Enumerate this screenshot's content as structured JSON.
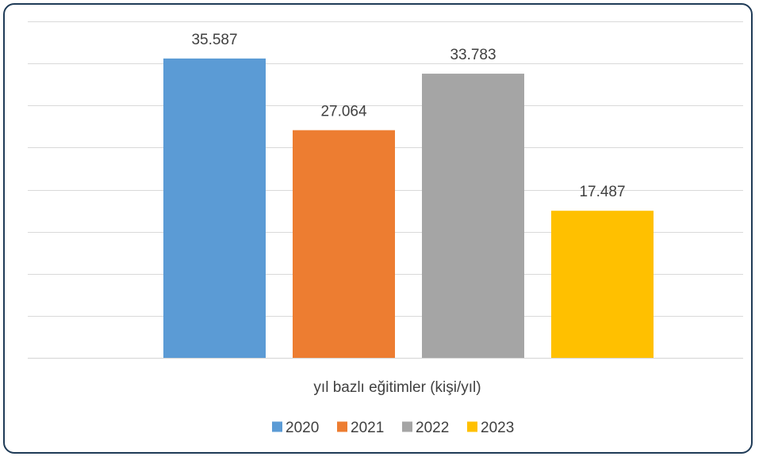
{
  "chart_data": {
    "type": "bar",
    "categories": [
      "yıl bazlı eğitimler (kişi/yıl)"
    ],
    "series": [
      {
        "name": "2020",
        "values": [
          35587
        ],
        "label": "35.587",
        "color": "#5b9bd5"
      },
      {
        "name": "2021",
        "values": [
          27064
        ],
        "label": "27.064",
        "color": "#ed7d31"
      },
      {
        "name": "2022",
        "values": [
          33783
        ],
        "label": "33.783",
        "color": "#a5a5a5"
      },
      {
        "name": "2023",
        "values": [
          17487
        ],
        "label": "17.487",
        "color": "#ffc000"
      }
    ],
    "xlabel": "yıl bazlı eğitimler (kişi/yıl)",
    "ylabel": "",
    "ylim": [
      0,
      40000
    ],
    "y_gridline_step": 5000,
    "y_axis_labels_visible": false,
    "grid": true,
    "legend": "bottom",
    "grid_color": "#d9d9d9",
    "border_color": "#1f3b57"
  }
}
